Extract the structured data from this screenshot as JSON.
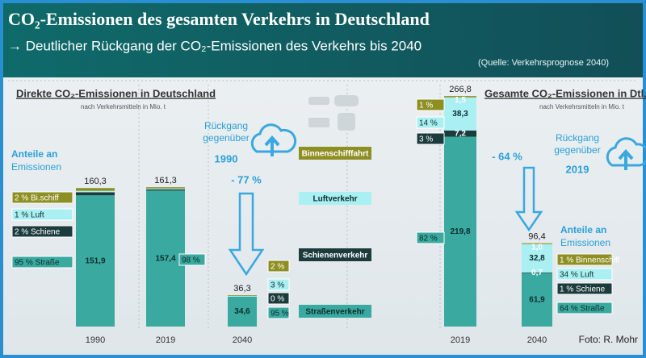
{
  "header": {
    "title": "CO₂-Emissionen des gesamten Verkehrs in Deutschland",
    "subtitle": "→ Deutlicher Rückgang der CO₂-Emissionen des Verkehrs bis 2040",
    "source": "(Quelle: Verkehrsprognose 2040)"
  },
  "chart_data": [
    {
      "type": "stacked_bar",
      "title": "Direkte CO₂-Emissionen in Deutschland",
      "subtitle": "nach Verkehrsmitteln in Mio. t",
      "categories": [
        "1990",
        "2019",
        "2040"
      ],
      "ylim": [
        0,
        280
      ],
      "totals": [
        160.3,
        161.3,
        36.3
      ],
      "total_labels": [
        "160,3",
        "161,3",
        "36,3"
      ],
      "series": [
        {
          "name": "Straßenverkehr",
          "color": "#3aa99f",
          "values": [
            151.9,
            157.4,
            34.6
          ],
          "value_labels": [
            "151,9",
            "157,4",
            "34,6"
          ],
          "share_labels": [
            "95 % Straße",
            "98 %",
            "95 %"
          ]
        },
        {
          "name": "Schienenverkehr",
          "color": "#1c3b3c",
          "values": [
            3.6,
            1.4,
            0.0
          ],
          "value_labels": [
            null,
            null,
            null
          ],
          "share_labels": [
            "2 % Schiene",
            null,
            "0 %"
          ]
        },
        {
          "name": "Luftverkehr",
          "color": "#aaf0f2",
          "values": [
            1.6,
            1.0,
            1.0
          ],
          "value_labels": [
            null,
            null,
            null
          ],
          "share_labels": [
            "1 % Luft",
            null,
            "3 %"
          ]
        },
        {
          "name": "Binnenschifffahrt",
          "color": "#8e8f22",
          "values": [
            3.2,
            1.5,
            0.7
          ],
          "value_labels": [
            null,
            null,
            null
          ],
          "share_labels": [
            "2 % Bi.schiff",
            null,
            "2 %"
          ]
        }
      ]
    },
    {
      "type": "stacked_bar",
      "title": "Gesamte CO₂-Emissionen in Dtl.",
      "subtitle": "nach Verkehrsmitteln in Mio. t",
      "categories": [
        "2019",
        "2040"
      ],
      "ylim": [
        0,
        280
      ],
      "totals": [
        266.8,
        96.4
      ],
      "total_labels": [
        "266,8",
        "96,4"
      ],
      "series": [
        {
          "color": "#3aa99f",
          "values": [
            219.8,
            61.9
          ],
          "value_labels": [
            "219,8",
            "61,9"
          ],
          "share_labels": [
            "82 %",
            "64 % Straße"
          ]
        },
        {
          "color": "#1c3b3c",
          "values": [
            7.2,
            0.7
          ],
          "value_labels": [
            "7,2",
            "0,7"
          ],
          "share_labels": [
            "3 %",
            "1 % Schiene"
          ]
        },
        {
          "color": "#aaf0f2",
          "values": [
            38.3,
            32.8
          ],
          "value_labels": [
            "38,3",
            "32,8"
          ],
          "share_labels": [
            "14 %",
            "34 % Luft"
          ]
        },
        {
          "color": "#8e8f22",
          "values": [
            1.5,
            1.0
          ],
          "value_labels": [
            "1,5",
            "1,0"
          ],
          "share_labels": [
            "1 %",
            "1 % Binnenschiff"
          ]
        }
      ]
    }
  ],
  "annotations": {
    "left_shares_heading": [
      "Anteile an",
      "Emissionen"
    ],
    "right_shares_heading": [
      "Anteile an",
      "Emissionen"
    ],
    "left_decline": [
      "Rückgang",
      "gegenüber",
      "1990"
    ],
    "left_decline_value": "- 77 %",
    "right_decline": [
      "Rückgang",
      "gegenüber",
      "2019"
    ],
    "right_decline_value": "- 64 %",
    "credit": "Foto: R. Mohr"
  }
}
